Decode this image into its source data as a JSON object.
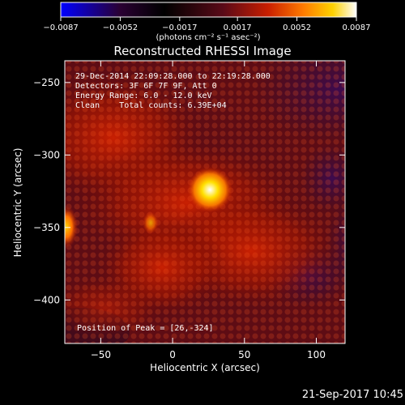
{
  "chart_data": {
    "type": "heatmap",
    "title": "Reconstructed RHESSI Image",
    "xlabel": "Heliocentric X (arcsec)",
    "ylabel": "Heliocentric Y (arcsec)",
    "xlim": [
      -75,
      120
    ],
    "ylim": [
      -430,
      -235
    ],
    "x_ticks": [
      -50,
      0,
      50,
      100
    ],
    "x_tick_labels": [
      "−50",
      "0",
      "50",
      "100"
    ],
    "y_ticks": [
      -250,
      -300,
      -350,
      -400
    ],
    "y_tick_labels": [
      "−250",
      "−300",
      "−350",
      "−400"
    ],
    "colorbar": {
      "min": -0.0087,
      "max": 0.0087,
      "ticks": [
        -0.0087,
        -0.0052,
        -0.0017,
        0.0017,
        0.0052,
        0.0087
      ],
      "tick_labels": [
        "−0.0087",
        "−0.0052",
        "−0.0017",
        "0.0017",
        "0.0052",
        "0.0087"
      ],
      "unit_label": "(photons cm⁻² s⁻¹ asec⁻²)",
      "colors": [
        "#0000ff",
        "#2a0033",
        "#000000",
        "#5a0a18",
        "#c81e00",
        "#ff7a00",
        "#ffd200",
        "#ffffff"
      ]
    },
    "annotations": [
      "29-Dec-2014 22:09:28.000 to 22:19:28.000",
      "Detectors: 3F 6F 7F 9F, Att 0",
      "Energy Range: 6.0 - 12.0 keV",
      "Clean    Total counts: 6.39E+04"
    ],
    "peak_label": "Position of Peak = [26,-324]",
    "peak": [
      26,
      -324
    ]
  },
  "footer": {
    "timestamp": "21-Sep-2017 10:45"
  }
}
